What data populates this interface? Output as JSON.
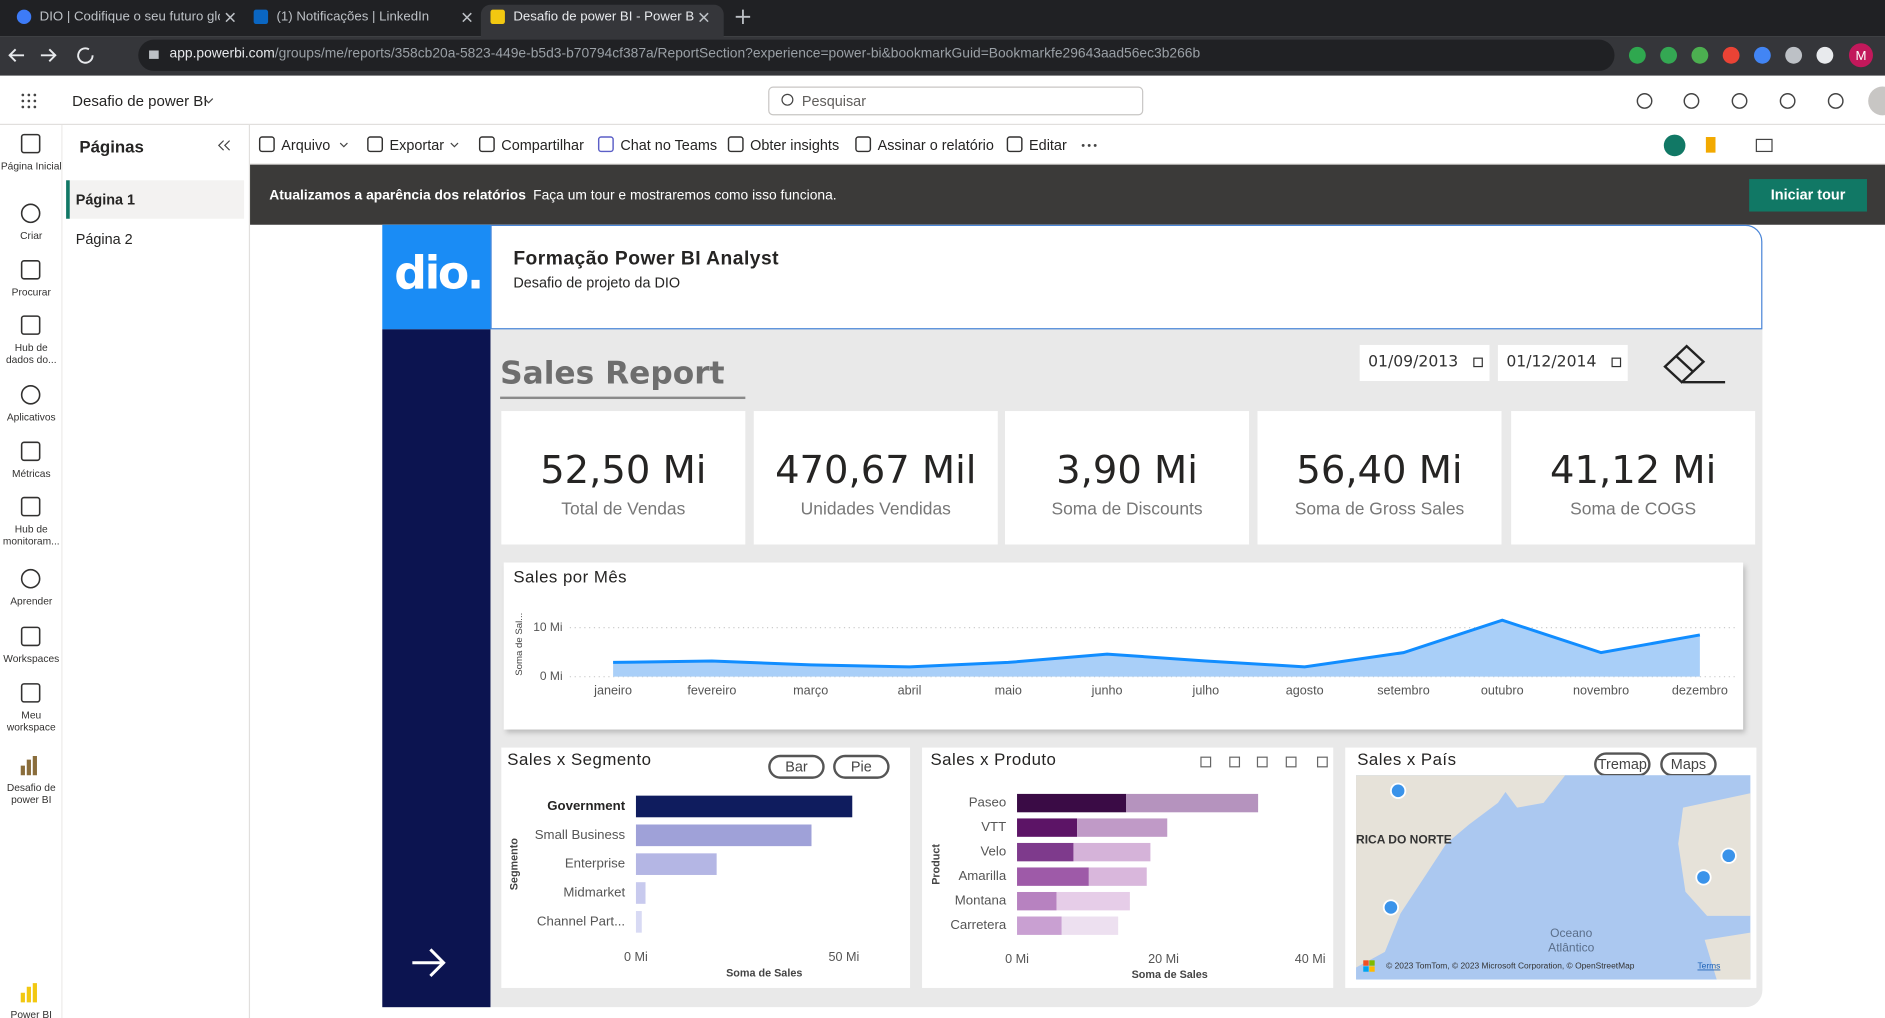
{
  "browser": {
    "tabs": [
      "DIO | Codifique o seu futuro glo",
      "(1) Notificações | LinkedIn",
      "Desafio de power BI - Power BI"
    ],
    "url_host": "app.powerbi.com",
    "url_path": "/groups/me/reports/358cb20a-5823-449e-b5d3-b70794cf387a/ReportSection?experience=power-bi&bookmarkGuid=Bookmarkfe29643aad56ec3b266b",
    "profile": "M"
  },
  "app": {
    "report_name": "Desafio de power BI",
    "search": "Pesquisar"
  },
  "nav": [
    "Página Inicial",
    "Criar",
    "Procurar",
    "Hub de dados do...",
    "Aplicativos",
    "Métricas",
    "Hub de monitoram...",
    "Aprender",
    "Workspaces",
    "Meu workspace",
    "Desafio de power BI",
    "Power BI"
  ],
  "pages": {
    "title": "Páginas",
    "items": [
      "Página 1",
      "Página 2"
    ],
    "selected": "Página 1"
  },
  "toolbar": [
    "Arquivo",
    "Exportar",
    "Compartilhar",
    "Chat no Teams",
    "Obter insights",
    "Assinar o relatório",
    "Editar"
  ],
  "banner": {
    "bold": "Atualizamos a aparência dos relatórios",
    "text": "Faça um tour e mostraremos como isso funciona.",
    "button": "Iniciar tour"
  },
  "report": {
    "logo": "dio.",
    "title": "Formação Power BI Analyst",
    "subtitle": "Desafio de projeto da DIO",
    "heading": "Sales Report",
    "date_from": "01/09/2013",
    "date_to": "01/12/2014",
    "kpis": [
      {
        "value": "52,50 Mi",
        "label": "Total de Vendas"
      },
      {
        "value": "470,67 Mil",
        "label": "Unidades Vendidas"
      },
      {
        "value": "3,90 Mi",
        "label": "Soma de Discounts"
      },
      {
        "value": "56,40 Mi",
        "label": "Soma de Gross Sales"
      },
      {
        "value": "41,12 Mi",
        "label": "Soma de COGS"
      }
    ],
    "charts": [
      {
        "type": "line",
        "title": "Sales por Mês",
        "y_label": "Soma de Sal...",
        "categories": [
          "janeiro",
          "fevereiro",
          "março",
          "abril",
          "maio",
          "junho",
          "julho",
          "agosto",
          "setembro",
          "outubro",
          "novembro",
          "dezembro"
        ],
        "series": [
          {
            "color": "#118dff",
            "fill": "#a9cff8",
            "values": [
              2.9,
              3.2,
              2.4,
              2.0,
              2.9,
              4.6,
              3.2,
              2.0,
              4.9,
              11.5,
              4.9,
              8.5
            ]
          }
        ],
        "ylim": [
          0,
          12
        ],
        "yticks": [
          {
            "value": 0,
            "label": "0 Mi"
          },
          {
            "value": 10,
            "label": "10 Mi"
          }
        ],
        "grid": true
      },
      {
        "type": "bar",
        "title": "Sales x Segmento",
        "buttons": [
          "Bar",
          "Pie"
        ],
        "x_label": "Soma de Sales",
        "y_label": "Segmento",
        "categories": [
          "Government",
          "Small Business",
          "Enterprise",
          "Midmarket",
          "Channel Part..."
        ],
        "selected_category": "Government",
        "values": [
          52,
          42.2,
          19.4,
          2.3,
          1.4
        ],
        "colors": [
          "#0f1c5e",
          "#9fa1d8",
          "#b4b6e4",
          "#c8caee",
          "#d8daf4"
        ],
        "xlim": [
          0,
          53
        ],
        "xticks": [
          {
            "value": 0,
            "label": "0 Mi"
          },
          {
            "value": 50,
            "label": "50 Mi"
          }
        ]
      },
      {
        "type": "bar",
        "title": "Sales x Produto",
        "x_label": "Soma de Sales",
        "y_label": "Product",
        "categories": [
          "Paseo",
          "VTT",
          "Velo",
          "Amarilla",
          "Montana",
          "Carretera"
        ],
        "series": [
          {
            "colors": [
              "#3a0b45",
              "#5c1466",
              "#7e3a8c",
              "#9e5aa8",
              "#b782c0",
              "#c9a0d2"
            ],
            "values": [
              14.9,
              8.2,
              7.7,
              9.8,
              5.4,
              6.1
            ]
          },
          {
            "colors": [
              "#b593be",
              "#c09ac7",
              "#d5b3d9",
              "#d9b7dc",
              "#e6cde8",
              "#ede0f0"
            ],
            "values": [
              18.0,
              12.3,
              10.5,
              7.9,
              10.0,
              7.7
            ]
          }
        ],
        "xlim": [
          0,
          42
        ],
        "xticks": [
          {
            "value": 0,
            "label": "0 Mi"
          },
          {
            "value": 20,
            "label": "20 Mi"
          },
          {
            "value": 40,
            "label": "40 Mi"
          }
        ]
      }
    ],
    "map": {
      "title": "Sales x País",
      "buttons": [
        "Tremap",
        "Maps"
      ],
      "region_label": "RICA DO NORTE",
      "ocean_label": [
        "Oceano",
        "Atlântico"
      ],
      "attribution": "© 2023 TomTom, © 2023 Microsoft Corporation, © OpenStreetMap",
      "terms": "Terms"
    }
  }
}
